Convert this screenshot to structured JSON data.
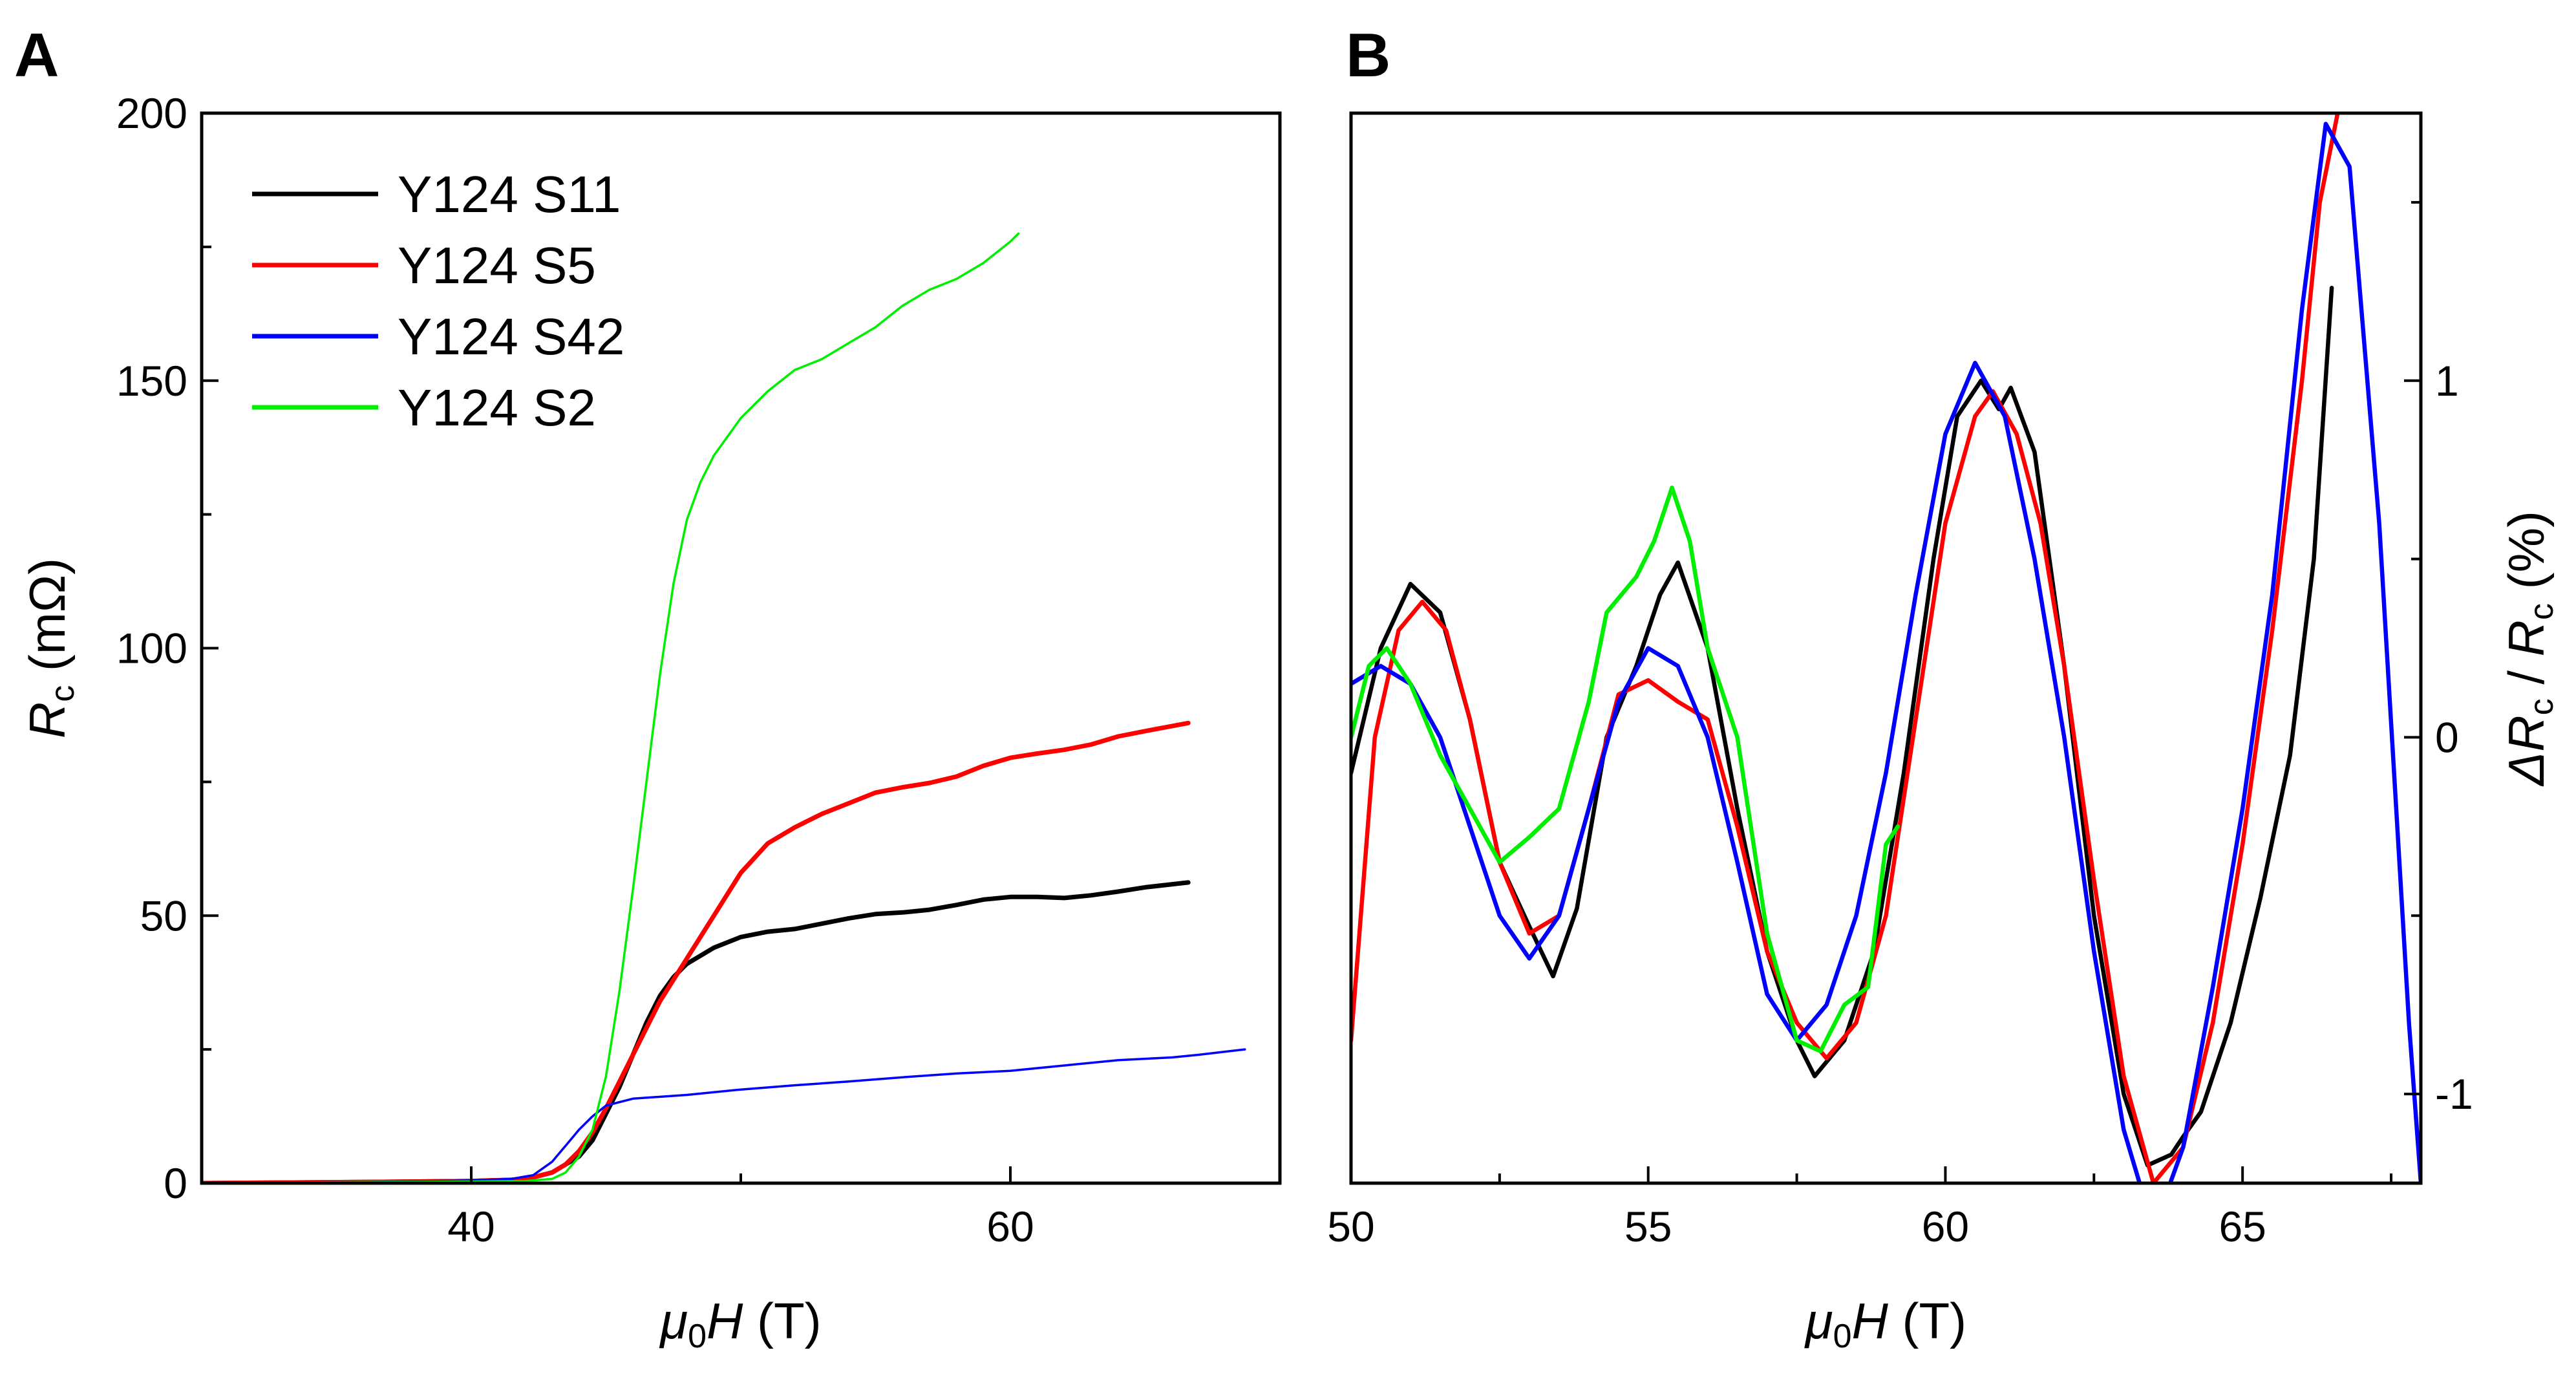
{
  "chart_data": [
    {
      "panel": "A",
      "type": "line",
      "xlabel": {
        "symbol": "μ",
        "sub": "0",
        "var": "H",
        "unit": " (T)"
      },
      "ylabel": {
        "var": "R",
        "sub": "c",
        "unit": " (mΩ)"
      },
      "xlim": [
        30,
        70
      ],
      "ylim": [
        0,
        200
      ],
      "xticks": [
        40,
        60
      ],
      "yticks": [
        0,
        50,
        100,
        150,
        200
      ],
      "legend_position": "top-left",
      "series": [
        {
          "name": "Y124 S11",
          "color": "#000000",
          "width": "thick",
          "x": [
            30,
            36,
            40,
            42,
            43,
            44,
            44.5,
            45,
            45.5,
            46,
            46.5,
            47,
            47.5,
            48,
            49,
            50,
            51,
            52,
            53,
            54,
            55,
            56,
            57,
            58,
            59,
            60,
            61,
            62,
            63,
            64,
            65,
            66.6
          ],
          "y": [
            0,
            0.2,
            0.4,
            0.7,
            2,
            5,
            8,
            13,
            18,
            24,
            30,
            35,
            38.5,
            41,
            44,
            46,
            47,
            47.5,
            48.5,
            49.5,
            50.3,
            50.6,
            51.1,
            52,
            53,
            53.5,
            53.5,
            53.3,
            53.8,
            54.5,
            55.3,
            56.2
          ]
        },
        {
          "name": "Y124 S5",
          "color": "#ff0000",
          "width": "thick",
          "x": [
            30,
            36,
            40,
            42,
            43,
            43.5,
            44,
            44.5,
            45,
            45.5,
            46,
            46.5,
            47,
            48,
            49,
            50,
            51,
            52,
            53,
            54,
            55,
            56,
            57,
            58,
            59,
            60,
            61,
            62,
            63,
            64,
            65,
            66.6
          ],
          "y": [
            0,
            0.2,
            0.4,
            0.7,
            2,
            3.5,
            6,
            9.5,
            14,
            19,
            24,
            29,
            34,
            42,
            50,
            58,
            63.5,
            66.5,
            69,
            71,
            73,
            74,
            74.8,
            76,
            78,
            79.5,
            80.3,
            81,
            82,
            83.5,
            84.5,
            86
          ]
        },
        {
          "name": "Y124 S42",
          "color": "#0000ff",
          "width": "thin",
          "x": [
            30,
            36,
            40,
            41.5,
            42.3,
            43,
            43.5,
            44,
            44.5,
            45,
            46,
            48,
            50,
            52,
            54,
            56,
            58,
            60,
            62,
            64,
            66,
            67,
            68.7
          ],
          "y": [
            0,
            0.2,
            0.5,
            0.8,
            1.5,
            4,
            7,
            10,
            12.5,
            14.5,
            15.8,
            16.5,
            17.5,
            18.3,
            19,
            19.8,
            20.5,
            21,
            22,
            23,
            23.5,
            24,
            25
          ]
        },
        {
          "name": "Y124 S2",
          "color": "#00ee00",
          "width": "thin",
          "x": [
            30,
            36,
            40,
            42,
            43,
            43.5,
            44,
            44.5,
            45,
            45.5,
            46,
            46.5,
            47,
            47.5,
            48,
            48.5,
            49,
            50,
            51,
            52,
            53,
            54,
            55,
            56,
            57,
            58,
            59,
            60,
            60.3
          ],
          "y": [
            0,
            0.2,
            0.3,
            0.4,
            0.8,
            2,
            5,
            10,
            20,
            36,
            55,
            75,
            95,
            112,
            124,
            131,
            136,
            143,
            148,
            152,
            154,
            157,
            160,
            164,
            167,
            169,
            172,
            176,
            177.5
          ]
        }
      ]
    },
    {
      "panel": "B",
      "type": "line",
      "xlabel": {
        "symbol": "μ",
        "sub": "0",
        "var": "H",
        "unit": " (T)"
      },
      "ylabel": {
        "var1": "ΔR",
        "sub1": "c",
        "var2": "R",
        "sub2": "c",
        "unit": " (%)"
      },
      "xlim": [
        50,
        68
      ],
      "ylim": [
        -1.25,
        1.75
      ],
      "xticks": [
        50,
        55,
        60,
        65
      ],
      "yticks": [
        -1,
        0,
        1
      ],
      "yaxis_side": "right",
      "series": [
        {
          "name": "Y124 S11",
          "color": "#000000",
          "x": [
            50,
            50.5,
            51,
            51.5,
            52,
            52.5,
            53,
            53.4,
            53.8,
            54.3,
            54.8,
            55.2,
            55.5,
            56,
            56.5,
            57,
            57.5,
            57.8,
            58.3,
            58.8,
            59.3,
            59.8,
            60.2,
            60.6,
            60.9,
            61.1,
            61.5,
            62,
            62.5,
            63,
            63.4,
            63.8,
            64,
            64.3,
            64.8,
            65.3,
            65.8,
            66.2,
            66.5
          ],
          "y": [
            -0.1,
            0.25,
            0.43,
            0.35,
            0.05,
            -0.35,
            -0.53,
            -0.67,
            -0.48,
            0.0,
            0.2,
            0.4,
            0.49,
            0.25,
            -0.2,
            -0.6,
            -0.85,
            -0.95,
            -0.85,
            -0.6,
            -0.1,
            0.5,
            0.9,
            1.0,
            0.92,
            0.98,
            0.8,
            0.2,
            -0.5,
            -1.0,
            -1.2,
            -1.17,
            -1.12,
            -1.05,
            -0.8,
            -0.45,
            -0.05,
            0.5,
            1.26
          ]
        },
        {
          "name": "Y124 S5",
          "color": "#ff0000",
          "x": [
            50,
            50.4,
            50.8,
            51.2,
            51.6,
            52,
            52.5,
            53,
            53.5,
            54,
            54.5,
            55,
            55.5,
            56,
            56.5,
            57,
            57.5,
            58,
            58.5,
            59,
            59.5,
            60,
            60.5,
            60.8,
            61.2,
            61.6,
            62,
            62.5,
            63,
            63.5,
            64,
            64.5,
            65,
            65.5,
            66,
            66.3,
            66.6
          ],
          "y": [
            -0.85,
            0.0,
            0.3,
            0.38,
            0.3,
            0.05,
            -0.35,
            -0.55,
            -0.5,
            -0.2,
            0.12,
            0.16,
            0.1,
            0.05,
            -0.25,
            -0.6,
            -0.8,
            -0.9,
            -0.8,
            -0.5,
            0.05,
            0.6,
            0.9,
            0.97,
            0.85,
            0.6,
            0.2,
            -0.4,
            -0.95,
            -1.25,
            -1.15,
            -0.8,
            -0.3,
            0.3,
            1.0,
            1.5,
            1.75
          ]
        },
        {
          "name": "Y124 S42",
          "color": "#0000ff",
          "x": [
            50,
            50.5,
            51,
            51.5,
            52,
            52.5,
            53,
            53.5,
            54,
            54.5,
            55,
            55.5,
            56,
            56.5,
            57,
            57.5,
            58,
            58.5,
            59,
            59.5,
            60,
            60.5,
            61,
            61.5,
            62,
            62.5,
            63,
            63.5,
            64,
            64.5,
            65,
            65.5,
            66,
            66.4,
            66.8,
            67.3,
            67.8,
            68
          ],
          "y": [
            0.15,
            0.2,
            0.15,
            0.0,
            -0.25,
            -0.5,
            -0.62,
            -0.5,
            -0.2,
            0.1,
            0.25,
            0.2,
            0.0,
            -0.35,
            -0.72,
            -0.85,
            -0.75,
            -0.5,
            -0.1,
            0.4,
            0.85,
            1.05,
            0.9,
            0.5,
            0.0,
            -0.6,
            -1.1,
            -1.38,
            -1.15,
            -0.7,
            -0.2,
            0.4,
            1.2,
            1.72,
            1.6,
            0.6,
            -0.8,
            -1.25
          ]
        },
        {
          "name": "Y124 S2",
          "color": "#00ee00",
          "x": [
            50,
            50.3,
            50.6,
            51,
            51.5,
            52,
            52.5,
            53,
            53.5,
            54,
            54.3,
            54.8,
            55.1,
            55.4,
            55.7,
            56,
            56.5,
            57,
            57.5,
            57.9,
            58.3,
            58.7,
            59,
            59.2
          ],
          "y": [
            0.0,
            0.2,
            0.25,
            0.15,
            -0.05,
            -0.2,
            -0.35,
            -0.28,
            -0.2,
            0.1,
            0.35,
            0.45,
            0.55,
            0.7,
            0.55,
            0.25,
            0.0,
            -0.55,
            -0.85,
            -0.88,
            -0.75,
            -0.7,
            -0.3,
            -0.25
          ]
        }
      ]
    }
  ],
  "figure": {
    "panel_a_letter": "A",
    "panel_b_letter": "B"
  }
}
